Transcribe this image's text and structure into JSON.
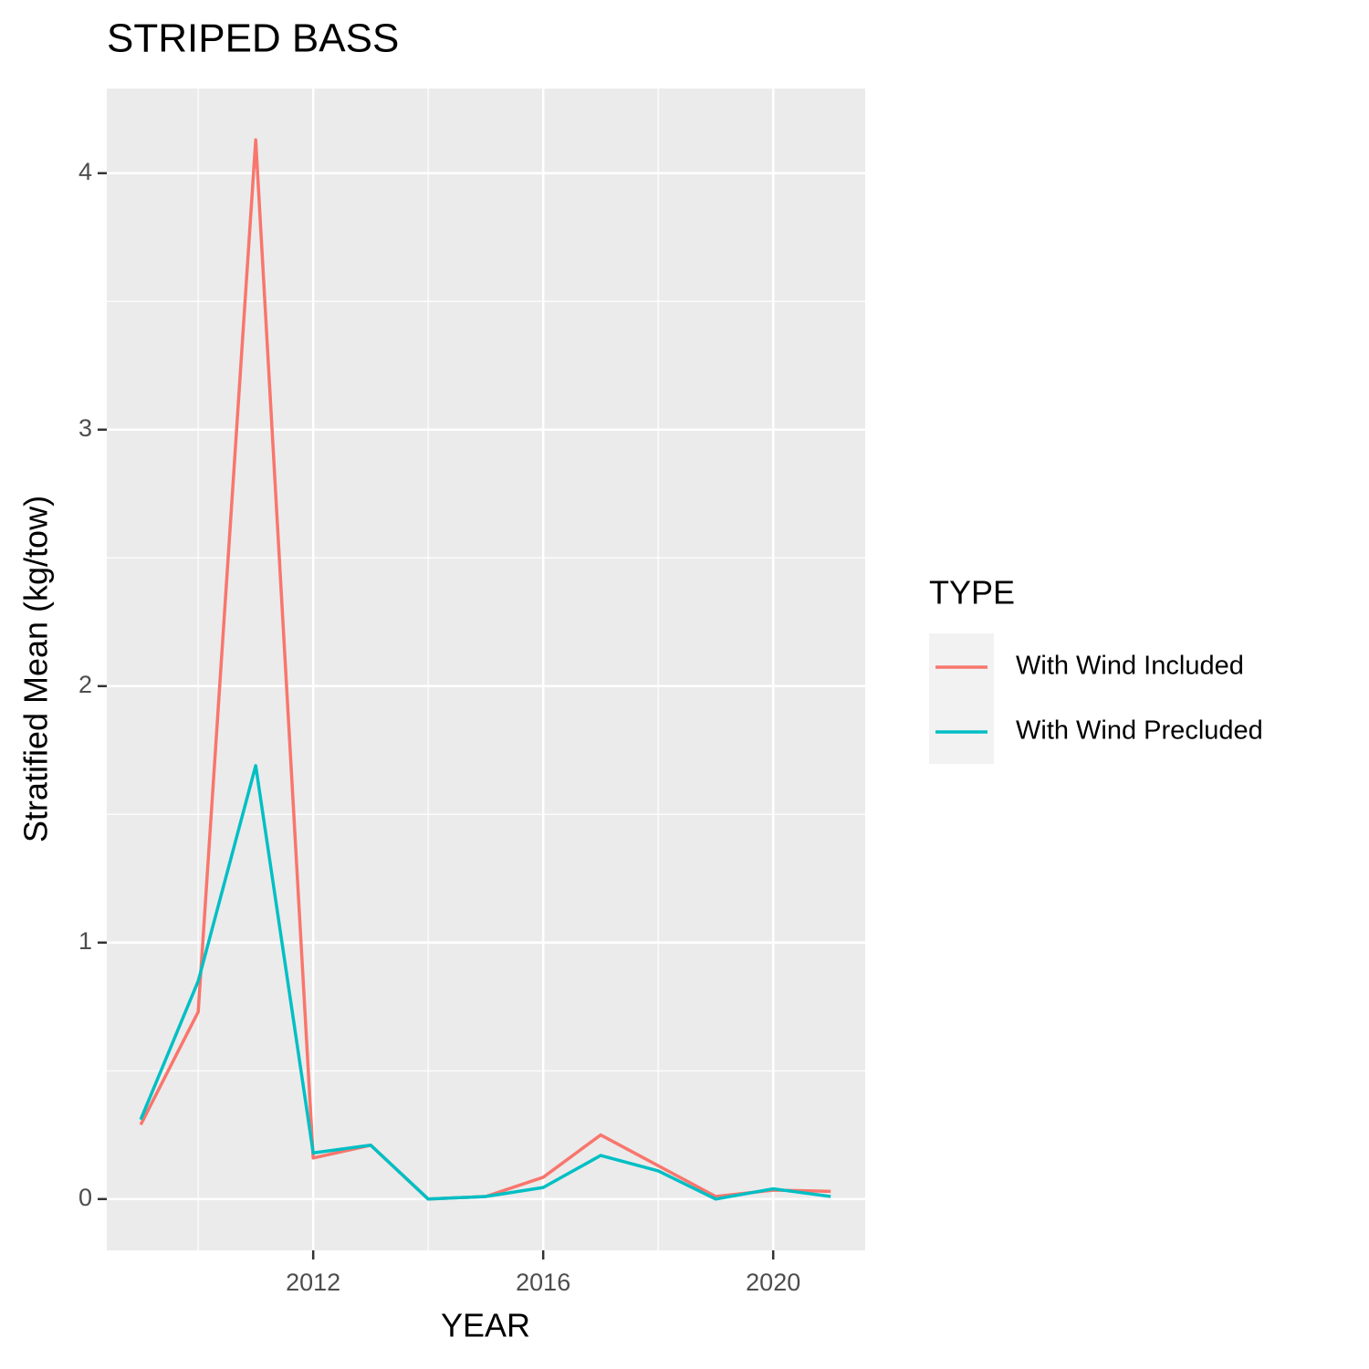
{
  "chart_data": {
    "type": "line",
    "title": "STRIPED BASS",
    "x_label": "YEAR",
    "y_label": "Stratified Mean (kg/tow)",
    "x": [
      2009,
      2010,
      2011,
      2012,
      2013,
      2014,
      2015,
      2016,
      2017,
      2018,
      2019,
      2020,
      2021
    ],
    "series": [
      {
        "name": "With Wind Included",
        "color": "#F8766D",
        "values": [
          0.29,
          0.73,
          4.13,
          0.16,
          0.21,
          0.0,
          0.01,
          0.085,
          0.25,
          0.13,
          0.01,
          0.035,
          0.03
        ]
      },
      {
        "name": "With Wind Precluded",
        "color": "#00BFC4",
        "values": [
          0.31,
          0.85,
          1.69,
          0.18,
          0.21,
          0.0,
          0.01,
          0.045,
          0.17,
          0.11,
          0.0,
          0.04,
          0.01
        ]
      }
    ],
    "xlim": [
      2008.41,
      2021.6
    ],
    "xticks": [
      2012,
      2016,
      2020
    ],
    "x_minor_ticks": [
      2010,
      2014,
      2018
    ],
    "ylim": [
      -0.2,
      4.33
    ],
    "yticks": [
      0,
      1,
      2,
      3,
      4
    ],
    "y_minor_ticks": [
      0.5,
      1.5,
      2.5,
      3.5
    ],
    "grid": true,
    "legend_title": "TYPE",
    "legend_position": "right"
  }
}
